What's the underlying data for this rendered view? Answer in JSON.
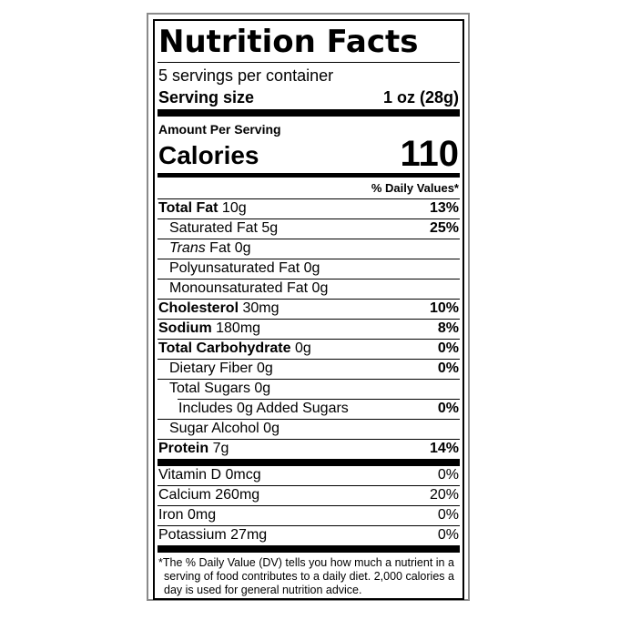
{
  "title": "Nutrition Facts",
  "servings_per_container": "5 servings per container",
  "serving_size": {
    "label": "Serving size",
    "value": "1 oz (28g)"
  },
  "calories_section": {
    "amount_per_serving": "Amount Per Serving",
    "label": "Calories",
    "value": "110"
  },
  "daily_value_header": "% Daily Values*",
  "nutrient_rows": [
    {
      "name": "Total Fat",
      "amount": "10g",
      "dv": "13%",
      "bold_name": true,
      "bold_dv": true,
      "indent": 0
    },
    {
      "name": "Saturated Fat",
      "amount": "5g",
      "dv": "25%",
      "bold_name": false,
      "bold_dv": true,
      "indent": 1
    },
    {
      "name": "Trans",
      "amount": "Fat 0g",
      "dv": "",
      "italic_name": true,
      "indent": 1
    },
    {
      "name": "Polyunsaturated Fat",
      "amount": "0g",
      "dv": "",
      "indent": 1
    },
    {
      "name": "Monounsaturated Fat",
      "amount": "0g",
      "dv": "",
      "indent": 1
    },
    {
      "name": "Cholesterol",
      "amount": "30mg",
      "dv": "10%",
      "bold_name": true,
      "bold_dv": true,
      "indent": 0
    },
    {
      "name": "Sodium",
      "amount": "180mg",
      "dv": "8%",
      "bold_name": true,
      "bold_dv": true,
      "indent": 0
    },
    {
      "name": "Total Carbohydrate",
      "amount": "0g",
      "dv": "0%",
      "bold_name": true,
      "bold_dv": true,
      "indent": 0
    },
    {
      "name": "Dietary Fiber",
      "amount": "0g",
      "dv": "0%",
      "bold_dv": true,
      "indent": 1
    },
    {
      "name": "Total Sugars",
      "amount": "0g",
      "dv": "",
      "indent": 1
    },
    {
      "name": "Includes 0g Added Sugars",
      "amount": "",
      "dv": "0%",
      "bold_dv": true,
      "indent": 2,
      "indented_rule": true
    },
    {
      "name": "Sugar Alcohol",
      "amount": "0g",
      "dv": "",
      "indent": 1
    },
    {
      "name": "Protein",
      "amount": "7g",
      "dv": "14%",
      "bold_name": true,
      "bold_dv": true,
      "indent": 0
    }
  ],
  "vitamin_rows": [
    {
      "name": "Vitamin D",
      "amount": "0mcg",
      "dv": "0%"
    },
    {
      "name": "Calcium",
      "amount": "260mg",
      "dv": "20%"
    },
    {
      "name": "Iron",
      "amount": "0mg",
      "dv": "0%"
    },
    {
      "name": "Potassium",
      "amount": "27mg",
      "dv": "0%"
    }
  ],
  "footnote_lines": [
    "*The % Daily Value (DV) tells you how much a nutrient in a",
    "serving of food contributes to a daily diet. 2,000 calories a",
    "day is used for general nutrition advice."
  ],
  "colors": {
    "label_border": "#000000",
    "outer_frame_border": "#8a8a8a",
    "background": "#ffffff",
    "text": "#000000"
  }
}
